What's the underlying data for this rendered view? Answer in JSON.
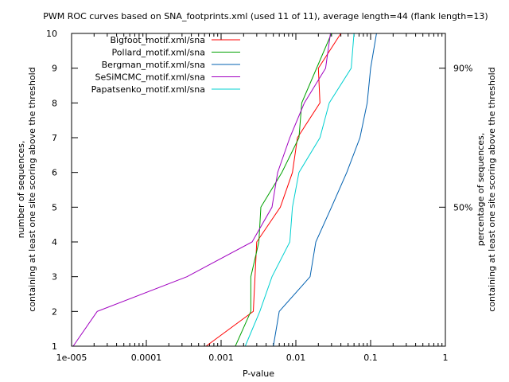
{
  "chart_data": {
    "type": "line",
    "title": "PWM ROC curves based on SNA_footprints.xml (used 11 of 11), average length=44 (flank length=13)",
    "xlabel": "P-value",
    "ylabel_lines": [
      "number of sequences,",
      "containing at least one site scoring above the threshold"
    ],
    "y2label_lines": [
      "percentage of sequences,",
      "containing at least one site scoring above the threshold"
    ],
    "x_scale": "log",
    "xlim": [
      1e-05,
      1
    ],
    "ylim": [
      1,
      10
    ],
    "x_ticks": [
      {
        "value": 1e-05,
        "label": "1e-005"
      },
      {
        "value": 0.0001,
        "label": "0.0001"
      },
      {
        "value": 0.001,
        "label": "0.001"
      },
      {
        "value": 0.01,
        "label": "0.01"
      },
      {
        "value": 0.1,
        "label": "0.1"
      },
      {
        "value": 1,
        "label": "1"
      }
    ],
    "y_ticks": [
      1,
      2,
      3,
      4,
      5,
      6,
      7,
      8,
      9,
      10
    ],
    "y2_ticks": [
      {
        "value": 5,
        "label": "50%"
      },
      {
        "value": 9,
        "label": "90%"
      }
    ],
    "legend_position": "top-left",
    "series": [
      {
        "name": "Bigfoot_motif.xml/sna",
        "color": "#ff0000",
        "points": [
          [
            0.00063,
            1
          ],
          [
            0.0027,
            2
          ],
          [
            0.003,
            4
          ],
          [
            0.0062,
            5
          ],
          [
            0.009,
            6
          ],
          [
            0.0105,
            7
          ],
          [
            0.021,
            8
          ],
          [
            0.02,
            9
          ],
          [
            0.04,
            10
          ]
        ]
      },
      {
        "name": "Pollard_motif.xml/sna",
        "color": "#00a000",
        "points": [
          [
            0.00155,
            1
          ],
          [
            0.0025,
            2
          ],
          [
            0.0025,
            3
          ],
          [
            0.0032,
            4
          ],
          [
            0.0034,
            5
          ],
          [
            0.0065,
            6
          ],
          [
            0.011,
            7
          ],
          [
            0.012,
            8
          ],
          [
            0.03,
            10
          ]
        ]
      },
      {
        "name": "Bergman_motif.xml/sna",
        "color": "#0060b0",
        "points": [
          [
            0.005,
            1
          ],
          [
            0.006,
            2
          ],
          [
            0.0155,
            3
          ],
          [
            0.0185,
            4
          ],
          [
            0.03,
            5
          ],
          [
            0.048,
            6
          ],
          [
            0.072,
            7
          ],
          [
            0.09,
            8
          ],
          [
            0.1,
            9
          ],
          [
            0.12,
            10
          ]
        ]
      },
      {
        "name": "SeSiMCMC_motif.xml/sna",
        "color": "#a000c0",
        "points": [
          [
            1.05e-05,
            1
          ],
          [
            2.2e-05,
            2
          ],
          [
            0.00035,
            3
          ],
          [
            0.0026,
            4
          ],
          [
            0.0048,
            5
          ],
          [
            0.0057,
            6
          ],
          [
            0.0083,
            7
          ],
          [
            0.013,
            8
          ],
          [
            0.025,
            9
          ],
          [
            0.029,
            10
          ]
        ]
      },
      {
        "name": "Papatsenko_motif.xml/sna",
        "color": "#00d0d0",
        "points": [
          [
            0.0021,
            1
          ],
          [
            0.0033,
            2
          ],
          [
            0.0048,
            3
          ],
          [
            0.0083,
            4
          ],
          [
            0.009,
            5
          ],
          [
            0.011,
            6
          ],
          [
            0.021,
            7
          ],
          [
            0.028,
            8
          ],
          [
            0.055,
            9
          ],
          [
            0.06,
            10
          ]
        ]
      }
    ]
  }
}
